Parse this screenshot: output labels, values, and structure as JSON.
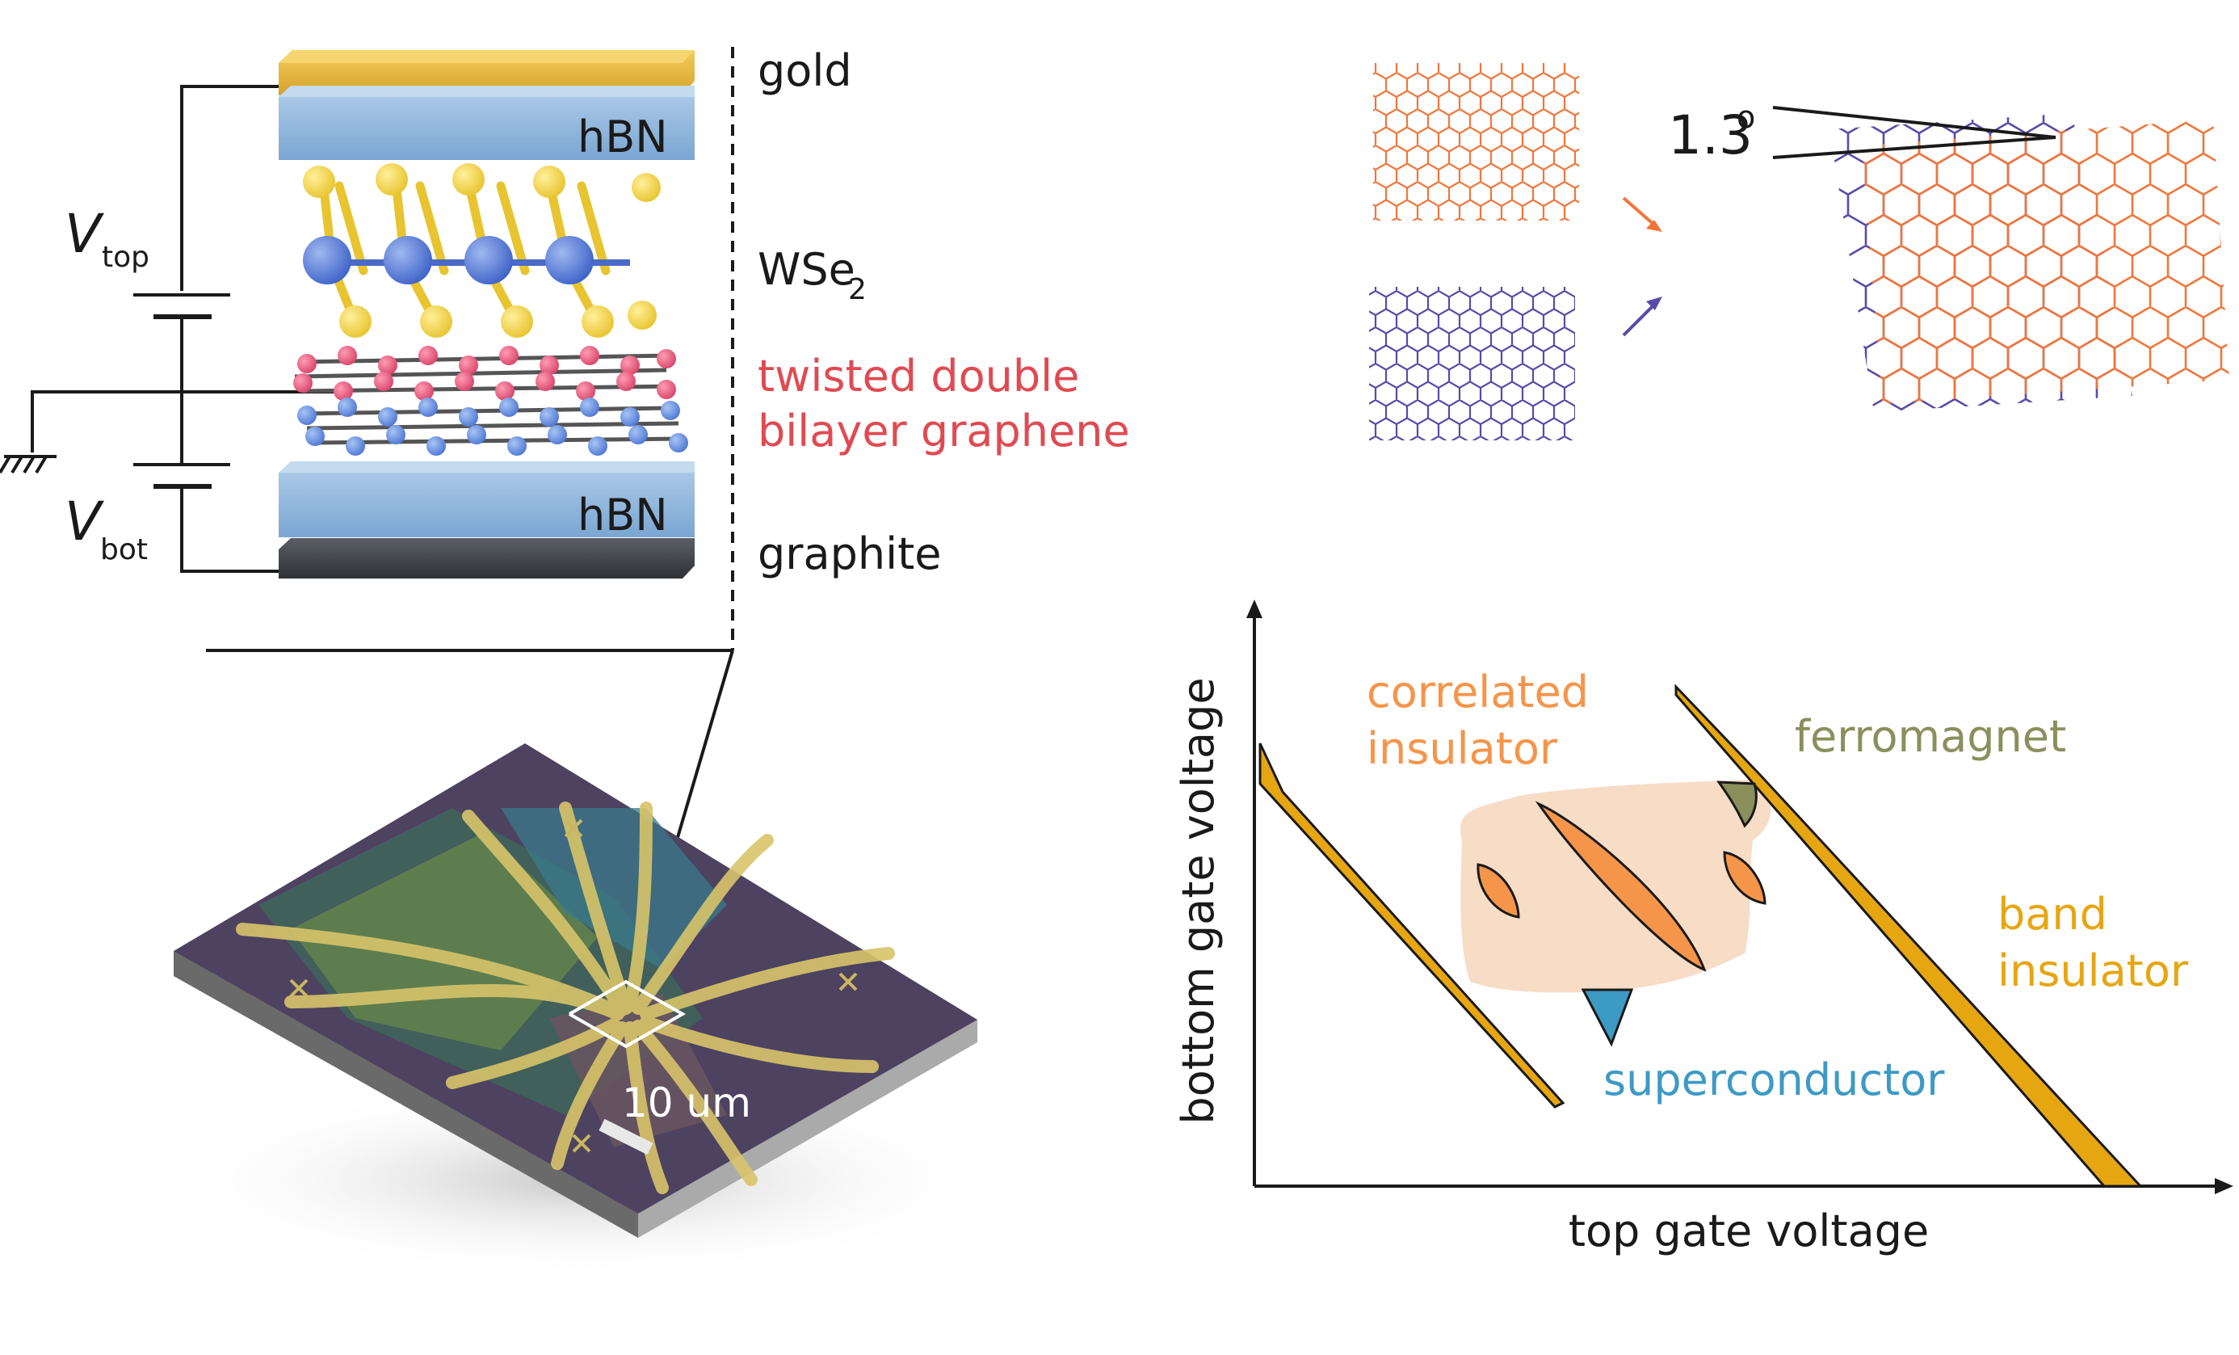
{
  "stack": {
    "layers": {
      "gold": "gold",
      "hbn_top": "hBN",
      "wse2": "WSe",
      "wse2_sub": "2",
      "tdbg_line1": "twisted double",
      "tdbg_line2": "bilayer graphene",
      "hbn_bot": "hBN",
      "graphite": "graphite"
    },
    "gates": {
      "v_top": "V",
      "v_top_sub": "top",
      "v_bot": "V",
      "v_bot_sub": "bot"
    }
  },
  "device": {
    "scale_bar": "10 um"
  },
  "twist": {
    "angle": "1.3",
    "angle_unit": "o"
  },
  "phase_diagram": {
    "xlabel": "top gate voltage",
    "ylabel": "bottom gate voltage",
    "regions": {
      "correlated_1": "correlated",
      "correlated_2": "insulator",
      "ferromagnet": "ferromagnet",
      "band_1": "band",
      "band_2": "insulator",
      "superconductor": "superconductor"
    }
  },
  "colors": {
    "gold": "#e5b53a",
    "hbn": "#8cb4dc",
    "graphite": "#3e4248",
    "red_label": "#e04a52",
    "orange_lattice": "#f0763a",
    "purple_lattice": "#5a4aa8",
    "correlated": "#f5954a",
    "ferromagnet": "#8a8f5c",
    "band": "#e6a612",
    "superconductor": "#3d9ac4",
    "phase_bg": "#f7dcc6",
    "device_bg": "#4d4260"
  }
}
